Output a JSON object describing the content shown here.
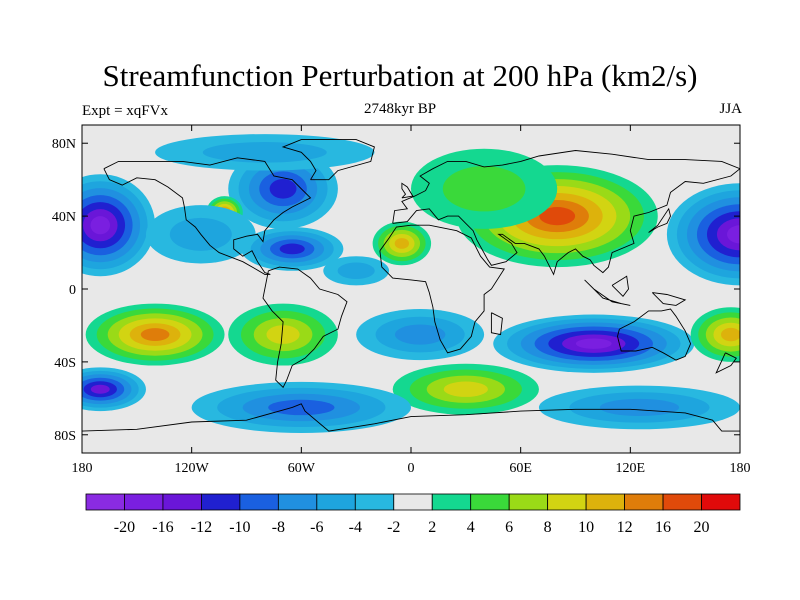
{
  "header": {
    "title": "Streamfunction Perturbation at 200 hPa (km2/s)",
    "center": "2748kyr BP",
    "left": "Expt = xqFVx",
    "right": "JJA"
  },
  "map": {
    "lon_range": [
      -180,
      180
    ],
    "lat_range": [
      -90,
      90
    ],
    "y_ticks": [
      {
        "lat": 80,
        "label": "80N"
      },
      {
        "lat": 40,
        "label": "40N"
      },
      {
        "lat": 0,
        "label": "0"
      },
      {
        "lat": -40,
        "label": "40S"
      },
      {
        "lat": -80,
        "label": "80S"
      }
    ],
    "x_ticks": [
      {
        "lon": -180,
        "label": "180"
      },
      {
        "lon": -120,
        "label": "120W"
      },
      {
        "lon": -60,
        "label": "60W"
      },
      {
        "lon": 0,
        "label": "0"
      },
      {
        "lon": 60,
        "label": "60E"
      },
      {
        "lon": 120,
        "label": "120E"
      },
      {
        "lon": 180,
        "label": "180"
      }
    ],
    "background_color": "#e8e8e8",
    "features": [
      {
        "name": "north-pacific-west-low",
        "lon": 180,
        "lat": 30,
        "rx": 40,
        "ry": 28,
        "level": -18
      },
      {
        "name": "north-pacific-east-low",
        "lon": -170,
        "lat": 35,
        "rx": 30,
        "ry": 28,
        "level": -18
      },
      {
        "name": "canada-low",
        "lon": -70,
        "lat": 55,
        "rx": 30,
        "ry": 22,
        "level": -10
      },
      {
        "name": "north-america-high",
        "lon": -102,
        "lat": 42,
        "rx": 10,
        "ry": 9,
        "level": 12
      },
      {
        "name": "caribbean-low",
        "lon": -65,
        "lat": 22,
        "rx": 28,
        "ry": 12,
        "level": -10
      },
      {
        "name": "gulf-low",
        "lon": -115,
        "lat": 30,
        "rx": 30,
        "ry": 16,
        "level": -5
      },
      {
        "name": "tropical-atlantic-low",
        "lon": -30,
        "lat": 10,
        "rx": 18,
        "ry": 8,
        "level": -4
      },
      {
        "name": "arctic-low",
        "lon": -80,
        "lat": 75,
        "rx": 60,
        "ry": 10,
        "level": -4
      },
      {
        "name": "asia-high",
        "lon": 80,
        "lat": 40,
        "rx": 55,
        "ry": 28,
        "level": 16
      },
      {
        "name": "north-africa-high",
        "lon": -5,
        "lat": 25,
        "rx": 16,
        "ry": 12,
        "level": 10
      },
      {
        "name": "east-asia-green",
        "lon": 40,
        "lat": 55,
        "rx": 40,
        "ry": 22,
        "level": 4
      },
      {
        "name": "indian-ocean-low",
        "lon": 100,
        "lat": -30,
        "rx": 55,
        "ry": 16,
        "level": -18
      },
      {
        "name": "south-atlantic-low",
        "lon": 5,
        "lat": -25,
        "rx": 35,
        "ry": 14,
        "level": -6
      },
      {
        "name": "south-pacific-high",
        "lon": -140,
        "lat": -25,
        "rx": 38,
        "ry": 17,
        "level": 14
      },
      {
        "name": "south-america-high",
        "lon": -70,
        "lat": -25,
        "rx": 30,
        "ry": 17,
        "level": 8
      },
      {
        "name": "far-east-high",
        "lon": 175,
        "lat": -25,
        "rx": 22,
        "ry": 15,
        "level": 10
      },
      {
        "name": "southern-ocean-high",
        "lon": 30,
        "lat": -55,
        "rx": 40,
        "ry": 14,
        "level": 8
      },
      {
        "name": "antarctic-low-west",
        "lon": -60,
        "lat": -65,
        "rx": 60,
        "ry": 14,
        "level": -8
      },
      {
        "name": "antarctic-low-east",
        "lon": 125,
        "lat": -65,
        "rx": 55,
        "ry": 12,
        "level": -6
      },
      {
        "name": "pacific-south-low",
        "lon": -170,
        "lat": -55,
        "rx": 25,
        "ry": 12,
        "level": -12
      }
    ]
  },
  "colorbar": {
    "colors": [
      "#8a2be2",
      "#7a1fe0",
      "#6a16d8",
      "#2020d0",
      "#1a60e0",
      "#2090e0",
      "#1ea5de",
      "#28b8e0",
      "#e8e8e8",
      "#14d890",
      "#3ad93a",
      "#9ada17",
      "#d2d412",
      "#ddb20c",
      "#df7d0a",
      "#e04a0a",
      "#e00a0a"
    ],
    "labels": [
      "-20",
      "-16",
      "-12",
      "-10",
      "-8",
      "-6",
      "-4",
      "-2",
      "2",
      "4",
      "6",
      "8",
      "10",
      "12",
      "16",
      "20"
    ]
  }
}
